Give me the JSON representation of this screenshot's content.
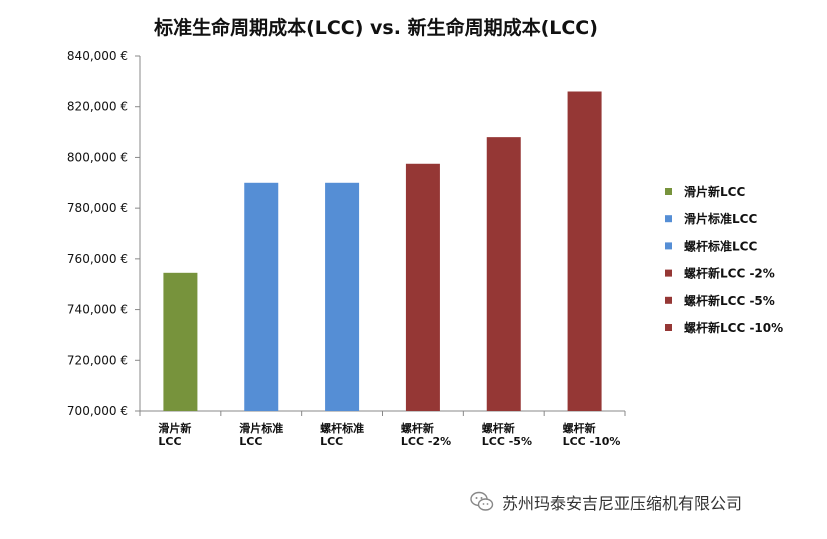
{
  "chart_data": {
    "type": "bar",
    "title": "标准生命周期成本(LCC) vs. 新生命周期成本(LCC)",
    "categories": [
      [
        "滑片新",
        "LCC"
      ],
      [
        "滑片标准",
        "LCC"
      ],
      [
        "螺杆标准",
        "LCC"
      ],
      [
        "螺杆新",
        "LCC -2%"
      ],
      [
        "螺杆新",
        "LCC -5%"
      ],
      [
        "螺杆新",
        "LCC -10%"
      ]
    ],
    "values": [
      754500,
      790000,
      790000,
      797500,
      808000,
      826000
    ],
    "colors": [
      "#77933c",
      "#558ed5",
      "#558ed5",
      "#953735",
      "#953735",
      "#953735"
    ],
    "ylim": [
      700000,
      840000
    ],
    "yticks": [
      700000,
      720000,
      740000,
      760000,
      780000,
      800000,
      820000,
      840000
    ],
    "ytick_labels": [
      "700,000 €",
      "720,000 €",
      "740,000 €",
      "760,000 €",
      "780,000 €",
      "800,000 €",
      "820,000 €",
      "840,000 €"
    ],
    "grid": false,
    "legend": {
      "placement": "right",
      "entries": [
        {
          "label": "滑片新LCC",
          "color": "#77933c"
        },
        {
          "label": "滑片标准LCC",
          "color": "#558ed5"
        },
        {
          "label": "螺杆标准LCC",
          "color": "#558ed5"
        },
        {
          "label": "螺杆新LCC -2%",
          "color": "#953735"
        },
        {
          "label": "螺杆新LCC -5%",
          "color": "#953735"
        },
        {
          "label": "螺杆新LCC -10%",
          "color": "#953735"
        }
      ]
    }
  },
  "watermark": {
    "icon": "wechat-icon",
    "text": "苏州玛泰安吉尼亚压缩机有限公司"
  }
}
